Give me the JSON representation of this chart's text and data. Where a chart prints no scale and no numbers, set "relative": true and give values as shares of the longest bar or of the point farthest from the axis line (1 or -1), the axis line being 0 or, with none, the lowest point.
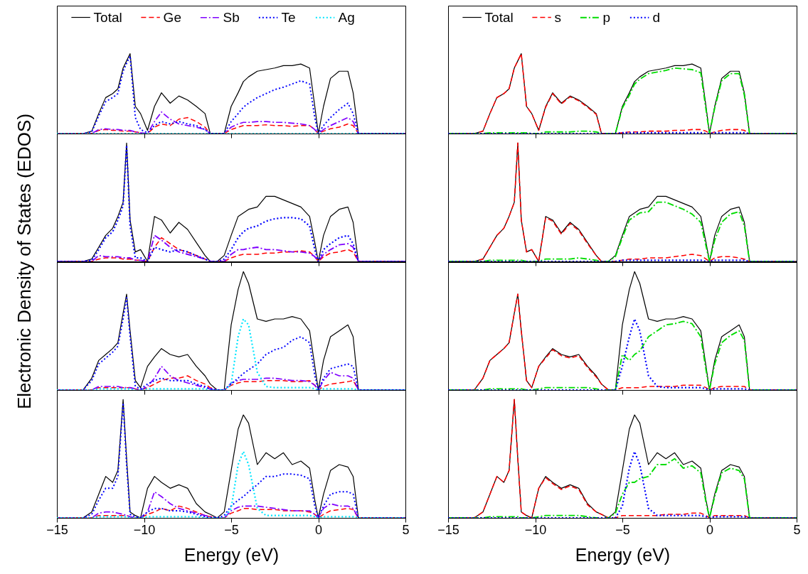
{
  "chart_data": [
    {
      "type": "line",
      "relative": true,
      "ylabel": "Electronic Density of States (EDOS)",
      "xlim": [
        -15,
        5
      ],
      "xticks": [
        -15,
        -10,
        -5,
        0,
        5
      ],
      "tick_labels": false,
      "legend": "top",
      "x": [
        -15,
        -13.5,
        -13,
        -12.6,
        -12.2,
        -11.8,
        -11.5,
        -11.2,
        -11,
        -10.8,
        -10.5,
        -10.2,
        -9.8,
        -9.4,
        -9,
        -8.5,
        -8,
        -7.5,
        -7,
        -6.5,
        -6.2,
        -5.8,
        -5.4,
        -5,
        -4.6,
        -4.3,
        -4,
        -3.5,
        -3,
        -2.5,
        -2,
        -1.5,
        -1,
        -0.5,
        -0.2,
        0,
        0.3,
        0.7,
        1.2,
        1.7,
        2,
        2.3,
        3,
        5
      ],
      "series": [
        {
          "name": "Total",
          "color": "#000000",
          "line_style": "solid",
          "values": [
            0,
            0,
            0.03,
            0.25,
            0.45,
            0.5,
            0.56,
            0.82,
            0.91,
            1,
            0.34,
            0.25,
            0.04,
            0.34,
            0.51,
            0.38,
            0.47,
            0.42,
            0.34,
            0.25,
            0,
            0,
            0,
            0.34,
            0.51,
            0.65,
            0.71,
            0.78,
            0.8,
            0.82,
            0.85,
            0.85,
            0.87,
            0.82,
            0.34,
            0,
            0.34,
            0.69,
            0.78,
            0.78,
            0.51,
            0,
            0,
            0
          ]
        },
        {
          "name": "Ge",
          "color": "#ff0000",
          "line_style": "dashed",
          "values": [
            0,
            0,
            0,
            0.04,
            0.05,
            0.04,
            0.04,
            0.03,
            0.03,
            0.03,
            0.02,
            0.01,
            0,
            0.08,
            0.12,
            0.1,
            0.18,
            0.2,
            0.15,
            0.08,
            0,
            0,
            0,
            0.05,
            0.08,
            0.1,
            0.1,
            0.1,
            0.11,
            0.1,
            0.1,
            0.09,
            0.1,
            0.1,
            0.05,
            0,
            0.03,
            0.06,
            0.08,
            0.12,
            0.1,
            0,
            0,
            0
          ]
        },
        {
          "name": "Sb",
          "color": "#8000ff",
          "line_style": "dashdot",
          "values": [
            0,
            0,
            0,
            0.05,
            0.06,
            0.05,
            0.05,
            0.04,
            0.04,
            0.04,
            0.02,
            0.01,
            0,
            0.15,
            0.27,
            0.18,
            0.12,
            0.1,
            0.08,
            0.05,
            0,
            0,
            0,
            0.08,
            0.12,
            0.14,
            0.14,
            0.15,
            0.15,
            0.14,
            0.14,
            0.13,
            0.12,
            0.1,
            0.05,
            0,
            0.05,
            0.1,
            0.15,
            0.2,
            0.15,
            0,
            0,
            0
          ]
        },
        {
          "name": "Te",
          "color": "#0000ff",
          "line_style": "dotted",
          "values": [
            0,
            0,
            0.02,
            0.22,
            0.4,
            0.45,
            0.5,
            0.78,
            0.88,
            0.97,
            0.2,
            0.05,
            0.01,
            0.1,
            0.15,
            0.12,
            0.15,
            0.12,
            0.1,
            0.05,
            0,
            0,
            0,
            0.15,
            0.25,
            0.33,
            0.38,
            0.45,
            0.5,
            0.55,
            0.58,
            0.62,
            0.66,
            0.62,
            0.2,
            0,
            0.1,
            0.2,
            0.3,
            0.38,
            0.25,
            0,
            0,
            0
          ]
        },
        {
          "name": "Ag",
          "color": "#00e5ff",
          "line_style": "dotted",
          "values": [
            0,
            0,
            0,
            0,
            0,
            0,
            0,
            0,
            0,
            0,
            0,
            0,
            0,
            0,
            0,
            0,
            0,
            0,
            0,
            0,
            0,
            0,
            0,
            0,
            0,
            0,
            0,
            0,
            0,
            0,
            0,
            0,
            0,
            0,
            0,
            0,
            0,
            0,
            0,
            0,
            0,
            0,
            0,
            0
          ]
        }
      ]
    },
    {
      "type": "line",
      "relative": true,
      "xlim": [
        -15,
        5
      ],
      "xticks": [
        -15,
        -10,
        -5,
        0,
        5
      ],
      "tick_labels": false,
      "legend": "top",
      "x": [
        -15,
        -13.5,
        -13,
        -12.6,
        -12.2,
        -11.8,
        -11.5,
        -11.2,
        -11,
        -10.8,
        -10.5,
        -10.2,
        -9.8,
        -9.4,
        -9,
        -8.5,
        -8,
        -7.5,
        -7,
        -6.5,
        -6.2,
        -5.8,
        -5.4,
        -5,
        -4.6,
        -4.3,
        -4,
        -3.5,
        -3,
        -2.5,
        -2,
        -1.5,
        -1,
        -0.5,
        -0.2,
        0,
        0.3,
        0.7,
        1.2,
        1.7,
        2,
        2.3,
        3,
        5
      ],
      "series": [
        {
          "name": "Total",
          "color": "#000000",
          "line_style": "solid",
          "values": [
            0,
            0,
            0.03,
            0.25,
            0.45,
            0.5,
            0.56,
            0.82,
            0.91,
            1,
            0.34,
            0.25,
            0.04,
            0.34,
            0.51,
            0.38,
            0.47,
            0.42,
            0.34,
            0.25,
            0,
            0,
            0,
            0.34,
            0.51,
            0.65,
            0.71,
            0.78,
            0.8,
            0.82,
            0.85,
            0.85,
            0.87,
            0.82,
            0.34,
            0,
            0.34,
            0.69,
            0.78,
            0.78,
            0.51,
            0,
            0,
            0
          ]
        },
        {
          "name": "s",
          "color": "#ff0000",
          "line_style": "dashed",
          "values": [
            0,
            0,
            0.03,
            0.25,
            0.45,
            0.5,
            0.56,
            0.82,
            0.91,
            1,
            0.34,
            0.25,
            0.04,
            0.33,
            0.5,
            0.37,
            0.46,
            0.41,
            0.33,
            0.24,
            0,
            0,
            0,
            0.01,
            0.02,
            0.02,
            0.02,
            0.03,
            0.03,
            0.03,
            0.04,
            0.04,
            0.05,
            0.05,
            0.03,
            0,
            0.02,
            0.04,
            0.05,
            0.05,
            0.04,
            0,
            0,
            0
          ]
        },
        {
          "name": "p",
          "color": "#00dd00",
          "line_style": "dashdot",
          "values": [
            0,
            0,
            0,
            0.01,
            0.01,
            0.01,
            0.01,
            0.01,
            0.01,
            0.01,
            0.01,
            0,
            0,
            0.02,
            0.02,
            0.02,
            0.02,
            0.03,
            0.03,
            0.02,
            0,
            0,
            0,
            0.32,
            0.48,
            0.62,
            0.68,
            0.75,
            0.77,
            0.79,
            0.82,
            0.81,
            0.8,
            0.76,
            0.3,
            0,
            0.32,
            0.66,
            0.75,
            0.75,
            0.48,
            0,
            0,
            0
          ]
        },
        {
          "name": "d",
          "color": "#0000ff",
          "line_style": "dotted",
          "values": [
            0,
            0,
            0,
            0,
            0,
            0,
            0,
            0,
            0,
            0,
            0,
            0,
            0,
            0,
            0,
            0,
            0,
            0,
            0,
            0,
            0,
            0,
            0,
            0.01,
            0.01,
            0.01,
            0.01,
            0.01,
            0.01,
            0.01,
            0.01,
            0.01,
            0.01,
            0.01,
            0,
            0,
            0.01,
            0.01,
            0.01,
            0.01,
            0.01,
            0,
            0,
            0
          ]
        }
      ]
    },
    {
      "type": "line",
      "relative": true,
      "xlim": [
        -15,
        5
      ],
      "xticks": [
        -15,
        -10,
        -5,
        0,
        5
      ],
      "tick_labels": false,
      "x": [
        -15,
        -13.5,
        -13,
        -12.6,
        -12.2,
        -11.8,
        -11.5,
        -11.2,
        -11,
        -10.8,
        -10.5,
        -10.2,
        -9.8,
        -9.4,
        -9,
        -8.5,
        -8,
        -7.5,
        -7,
        -6.5,
        -6.2,
        -5.8,
        -5.4,
        -5,
        -4.6,
        -4.3,
        -4,
        -3.5,
        -3,
        -2.5,
        -2,
        -1.5,
        -1,
        -0.5,
        -0.2,
        0,
        0.3,
        0.7,
        1.2,
        1.7,
        2,
        2.3,
        3,
        5
      ],
      "series": [
        {
          "color": "#000000",
          "line_style": "solid",
          "values": [
            0,
            0,
            0.02,
            0.12,
            0.22,
            0.28,
            0.38,
            0.5,
            1,
            0.35,
            0.08,
            0.1,
            0,
            0.38,
            0.35,
            0.24,
            0.33,
            0.27,
            0.16,
            0.05,
            0,
            0,
            0.05,
            0.22,
            0.38,
            0.41,
            0.44,
            0.46,
            0.55,
            0.55,
            0.52,
            0.49,
            0.46,
            0.38,
            0.16,
            0,
            0.22,
            0.38,
            0.44,
            0.46,
            0.33,
            0,
            0,
            0
          ]
        },
        {
          "color": "#ff0000",
          "line_style": "dashed",
          "values": [
            0,
            0,
            0,
            0.02,
            0.03,
            0.03,
            0.03,
            0.02,
            0.02,
            0.02,
            0.01,
            0.01,
            0,
            0.12,
            0.2,
            0.15,
            0.1,
            0.08,
            0.05,
            0.02,
            0,
            0,
            0,
            0.03,
            0.05,
            0.06,
            0.06,
            0.06,
            0.07,
            0.07,
            0.08,
            0.08,
            0.09,
            0.08,
            0.04,
            0,
            0.04,
            0.07,
            0.08,
            0.1,
            0.08,
            0,
            0,
            0
          ]
        },
        {
          "color": "#8000ff",
          "line_style": "dashdot",
          "values": [
            0,
            0,
            0,
            0.05,
            0.04,
            0.04,
            0.04,
            0.03,
            0.03,
            0.03,
            0.01,
            0.01,
            0,
            0.22,
            0.18,
            0.12,
            0.08,
            0.06,
            0.04,
            0.02,
            0,
            0,
            0,
            0.06,
            0.1,
            0.1,
            0.11,
            0.12,
            0.1,
            0.1,
            0.09,
            0.08,
            0.08,
            0.07,
            0.04,
            0,
            0.06,
            0.1,
            0.14,
            0.15,
            0.12,
            0,
            0,
            0
          ]
        },
        {
          "color": "#0000ff",
          "line_style": "dotted",
          "values": [
            0,
            0,
            0.01,
            0.1,
            0.2,
            0.25,
            0.35,
            0.47,
            0.98,
            0.3,
            0.03,
            0.03,
            0,
            0.12,
            0.1,
            0.08,
            0.1,
            0.08,
            0.05,
            0.02,
            0,
            0,
            0.02,
            0.1,
            0.2,
            0.25,
            0.28,
            0.3,
            0.34,
            0.36,
            0.37,
            0.37,
            0.36,
            0.3,
            0.1,
            0,
            0.1,
            0.15,
            0.2,
            0.22,
            0.15,
            0,
            0,
            0
          ]
        }
      ]
    },
    {
      "type": "line",
      "relative": true,
      "xlim": [
        -15,
        5
      ],
      "xticks": [
        -15,
        -10,
        -5,
        0,
        5
      ],
      "tick_labels": false,
      "x": [
        -15,
        -13.5,
        -13,
        -12.6,
        -12.2,
        -11.8,
        -11.5,
        -11.2,
        -11,
        -10.8,
        -10.5,
        -10.2,
        -9.8,
        -9.4,
        -9,
        -8.5,
        -8,
        -7.5,
        -7,
        -6.5,
        -6.2,
        -5.8,
        -5.4,
        -5,
        -4.6,
        -4.3,
        -4,
        -3.5,
        -3,
        -2.5,
        -2,
        -1.5,
        -1,
        -0.5,
        -0.2,
        0,
        0.3,
        0.7,
        1.2,
        1.7,
        2,
        2.3,
        3,
        5
      ],
      "series": [
        {
          "color": "#000000",
          "line_style": "solid",
          "values": [
            0,
            0,
            0.02,
            0.12,
            0.22,
            0.28,
            0.38,
            0.5,
            1,
            0.35,
            0.08,
            0.1,
            0,
            0.38,
            0.35,
            0.24,
            0.33,
            0.27,
            0.16,
            0.05,
            0,
            0,
            0.05,
            0.22,
            0.38,
            0.41,
            0.44,
            0.46,
            0.55,
            0.55,
            0.52,
            0.49,
            0.46,
            0.38,
            0.16,
            0,
            0.22,
            0.38,
            0.44,
            0.46,
            0.33,
            0,
            0,
            0
          ]
        },
        {
          "color": "#ff0000",
          "line_style": "dashed",
          "values": [
            0,
            0,
            0.02,
            0.12,
            0.22,
            0.28,
            0.38,
            0.5,
            1,
            0.35,
            0.08,
            0.1,
            0,
            0.37,
            0.34,
            0.23,
            0.32,
            0.26,
            0.15,
            0.05,
            0,
            0,
            0,
            0.01,
            0.02,
            0.02,
            0.02,
            0.03,
            0.03,
            0.03,
            0.04,
            0.05,
            0.06,
            0.05,
            0.02,
            0,
            0.03,
            0.04,
            0.04,
            0.03,
            0.02,
            0,
            0,
            0
          ]
        },
        {
          "color": "#00dd00",
          "line_style": "dashdot",
          "values": [
            0,
            0,
            0,
            0.01,
            0.01,
            0.01,
            0.01,
            0.01,
            0.01,
            0.01,
            0,
            0,
            0,
            0.02,
            0.02,
            0.02,
            0.02,
            0.03,
            0.02,
            0.01,
            0,
            0,
            0.04,
            0.2,
            0.35,
            0.38,
            0.41,
            0.42,
            0.5,
            0.5,
            0.47,
            0.44,
            0.4,
            0.33,
            0.13,
            0,
            0.18,
            0.33,
            0.4,
            0.42,
            0.3,
            0,
            0,
            0
          ]
        },
        {
          "color": "#0000ff",
          "line_style": "dotted",
          "values": [
            0,
            0,
            0,
            0,
            0,
            0,
            0,
            0,
            0,
            0,
            0,
            0,
            0,
            0,
            0,
            0,
            0,
            0,
            0,
            0,
            0,
            0,
            0,
            0.01,
            0.01,
            0.01,
            0.01,
            0.01,
            0.01,
            0.01,
            0.01,
            0.01,
            0.01,
            0.01,
            0,
            0,
            0.01,
            0.01,
            0.01,
            0.01,
            0.01,
            0,
            0,
            0
          ]
        }
      ]
    },
    {
      "type": "line",
      "relative": true,
      "xlim": [
        -15,
        5
      ],
      "xticks": [
        -15,
        -10,
        -5,
        0,
        5
      ],
      "tick_labels": false,
      "x": [
        -15,
        -13.5,
        -13,
        -12.6,
        -12.2,
        -11.8,
        -11.5,
        -11.2,
        -11,
        -10.8,
        -10.5,
        -10.2,
        -9.8,
        -9.4,
        -9,
        -8.5,
        -8,
        -7.5,
        -7,
        -6.5,
        -6.2,
        -5.8,
        -5.4,
        -5,
        -4.6,
        -4.3,
        -4,
        -3.5,
        -3,
        -2.5,
        -2,
        -1.5,
        -1,
        -0.5,
        -0.2,
        0,
        0.3,
        0.7,
        1.2,
        1.7,
        2,
        2.3,
        3,
        5
      ],
      "series": [
        {
          "color": "#000000",
          "line_style": "solid",
          "values": [
            0,
            0,
            0.1,
            0.25,
            0.3,
            0.35,
            0.4,
            0.65,
            0.81,
            0.5,
            0.08,
            0.02,
            0.2,
            0.28,
            0.35,
            0.3,
            0.28,
            0.3,
            0.2,
            0.12,
            0.05,
            0,
            0,
            0.55,
            0.85,
            1,
            0.9,
            0.6,
            0.58,
            0.6,
            0.6,
            0.62,
            0.6,
            0.5,
            0.2,
            0,
            0.25,
            0.45,
            0.5,
            0.55,
            0.45,
            0,
            0,
            0
          ]
        },
        {
          "color": "#ff0000",
          "line_style": "dashed",
          "values": [
            0,
            0,
            0,
            0.02,
            0.02,
            0.02,
            0.02,
            0.02,
            0.02,
            0.02,
            0.01,
            0,
            0.02,
            0.05,
            0.08,
            0.1,
            0.1,
            0.12,
            0.08,
            0.05,
            0.02,
            0,
            0,
            0.04,
            0.06,
            0.07,
            0.07,
            0.07,
            0.08,
            0.08,
            0.08,
            0.07,
            0.07,
            0.08,
            0.04,
            0,
            0.03,
            0.05,
            0.06,
            0.07,
            0.08,
            0,
            0,
            0
          ]
        },
        {
          "color": "#8000ff",
          "line_style": "dashdot",
          "values": [
            0,
            0,
            0,
            0.03,
            0.03,
            0.03,
            0.03,
            0.02,
            0.02,
            0.02,
            0.01,
            0,
            0.03,
            0.1,
            0.2,
            0.12,
            0.08,
            0.06,
            0.04,
            0.02,
            0.01,
            0,
            0,
            0.06,
            0.08,
            0.09,
            0.09,
            0.09,
            0.1,
            0.1,
            0.09,
            0.08,
            0.08,
            0.07,
            0.04,
            0,
            0.08,
            0.15,
            0.12,
            0.12,
            0.1,
            0,
            0,
            0
          ]
        },
        {
          "color": "#0000ff",
          "line_style": "dotted",
          "values": [
            0,
            0,
            0.08,
            0.22,
            0.27,
            0.32,
            0.37,
            0.6,
            0.78,
            0.45,
            0.03,
            0.01,
            0.05,
            0.08,
            0.1,
            0.08,
            0.08,
            0.08,
            0.05,
            0.03,
            0.01,
            0,
            0,
            0.05,
            0.1,
            0.14,
            0.17,
            0.22,
            0.3,
            0.34,
            0.36,
            0.42,
            0.45,
            0.4,
            0.12,
            0,
            0.1,
            0.18,
            0.2,
            0.22,
            0.2,
            0,
            0,
            0
          ]
        },
        {
          "color": "#00e5ff",
          "line_style": "dotted",
          "values": [
            0,
            0,
            0,
            0.01,
            0.01,
            0.01,
            0.01,
            0.01,
            0.01,
            0.01,
            0,
            0,
            0.01,
            0.01,
            0.01,
            0.01,
            0.01,
            0.01,
            0.01,
            0.01,
            0,
            0,
            0,
            0.05,
            0.45,
            0.6,
            0.55,
            0.15,
            0.03,
            0.02,
            0.02,
            0.02,
            0.02,
            0.02,
            0.01,
            0,
            0.01,
            0.01,
            0.01,
            0.01,
            0.01,
            0,
            0,
            0
          ]
        }
      ]
    },
    {
      "type": "line",
      "relative": true,
      "xlim": [
        -15,
        5
      ],
      "xticks": [
        -15,
        -10,
        -5,
        0,
        5
      ],
      "tick_labels": false,
      "x": [
        -15,
        -13.5,
        -13,
        -12.6,
        -12.2,
        -11.8,
        -11.5,
        -11.2,
        -11,
        -10.8,
        -10.5,
        -10.2,
        -9.8,
        -9.4,
        -9,
        -8.5,
        -8,
        -7.5,
        -7,
        -6.5,
        -6.2,
        -5.8,
        -5.4,
        -5,
        -4.6,
        -4.3,
        -4,
        -3.5,
        -3,
        -2.5,
        -2,
        -1.5,
        -1,
        -0.5,
        -0.2,
        0,
        0.3,
        0.7,
        1.2,
        1.7,
        2,
        2.3,
        3,
        5
      ],
      "series": [
        {
          "color": "#000000",
          "line_style": "solid",
          "values": [
            0,
            0,
            0.1,
            0.25,
            0.3,
            0.35,
            0.4,
            0.65,
            0.81,
            0.5,
            0.08,
            0.02,
            0.2,
            0.28,
            0.35,
            0.3,
            0.28,
            0.3,
            0.2,
            0.12,
            0.05,
            0,
            0,
            0.55,
            0.85,
            1,
            0.9,
            0.6,
            0.58,
            0.6,
            0.6,
            0.62,
            0.6,
            0.5,
            0.2,
            0,
            0.25,
            0.45,
            0.5,
            0.55,
            0.45,
            0,
            0,
            0
          ]
        },
        {
          "color": "#ff0000",
          "line_style": "dashed",
          "values": [
            0,
            0,
            0.1,
            0.25,
            0.3,
            0.35,
            0.4,
            0.65,
            0.81,
            0.5,
            0.08,
            0.02,
            0.2,
            0.27,
            0.34,
            0.29,
            0.27,
            0.29,
            0.19,
            0.11,
            0.05,
            0,
            0,
            0.02,
            0.02,
            0.02,
            0.02,
            0.03,
            0.03,
            0.03,
            0.03,
            0.04,
            0.04,
            0.04,
            0.02,
            0,
            0.02,
            0.03,
            0.03,
            0.03,
            0.03,
            0,
            0,
            0
          ]
        },
        {
          "color": "#00dd00",
          "line_style": "dashdot",
          "values": [
            0,
            0,
            0,
            0.01,
            0.01,
            0.01,
            0.01,
            0.01,
            0.01,
            0.01,
            0,
            0,
            0.01,
            0.02,
            0.02,
            0.02,
            0.02,
            0.02,
            0.02,
            0.01,
            0,
            0,
            0,
            0.3,
            0.25,
            0.3,
            0.33,
            0.45,
            0.5,
            0.55,
            0.56,
            0.58,
            0.56,
            0.45,
            0.17,
            0,
            0.22,
            0.4,
            0.46,
            0.5,
            0.42,
            0,
            0,
            0
          ]
        },
        {
          "color": "#0000ff",
          "line_style": "dotted",
          "values": [
            0,
            0,
            0,
            0,
            0,
            0,
            0,
            0,
            0,
            0,
            0,
            0,
            0,
            0,
            0,
            0,
            0,
            0,
            0,
            0,
            0,
            0,
            0,
            0.2,
            0.45,
            0.6,
            0.5,
            0.12,
            0.03,
            0.02,
            0.02,
            0.02,
            0.02,
            0.02,
            0.01,
            0,
            0.01,
            0.01,
            0.01,
            0.01,
            0.01,
            0,
            0,
            0
          ]
        }
      ]
    },
    {
      "type": "line",
      "relative": true,
      "xlabel": "Energy (eV)",
      "xlim": [
        -15,
        5
      ],
      "xticks": [
        -15,
        -10,
        -5,
        0,
        5
      ],
      "tick_labels": "x",
      "x": [
        -15,
        -13.5,
        -13,
        -12.6,
        -12.2,
        -11.8,
        -11.5,
        -11.2,
        -11,
        -10.8,
        -10.5,
        -10.2,
        -9.8,
        -9.4,
        -9,
        -8.5,
        -8,
        -7.5,
        -7,
        -6.5,
        -6.2,
        -5.8,
        -5.4,
        -5,
        -4.6,
        -4.3,
        -4,
        -3.5,
        -3,
        -2.5,
        -2,
        -1.5,
        -1,
        -0.5,
        -0.2,
        0,
        0.3,
        0.7,
        1.2,
        1.7,
        2,
        2.3,
        3,
        5
      ],
      "series": [
        {
          "color": "#000000",
          "line_style": "solid",
          "values": [
            0,
            0,
            0.05,
            0.2,
            0.35,
            0.3,
            0.4,
            1,
            0.5,
            0.05,
            0.02,
            0,
            0.25,
            0.35,
            0.3,
            0.25,
            0.28,
            0.25,
            0.12,
            0.05,
            0.03,
            0,
            0.05,
            0.4,
            0.75,
            0.87,
            0.8,
            0.45,
            0.55,
            0.5,
            0.55,
            0.45,
            0.48,
            0.42,
            0.15,
            0,
            0.2,
            0.4,
            0.45,
            0.43,
            0.35,
            0,
            0,
            0
          ]
        },
        {
          "color": "#ff0000",
          "line_style": "dashed",
          "values": [
            0,
            0,
            0,
            0.02,
            0.02,
            0.02,
            0.02,
            0.02,
            0.02,
            0.01,
            0,
            0,
            0.03,
            0.05,
            0.08,
            0.06,
            0.1,
            0.08,
            0.05,
            0.02,
            0.01,
            0,
            0,
            0.04,
            0.06,
            0.08,
            0.08,
            0.07,
            0.07,
            0.07,
            0.06,
            0.06,
            0.06,
            0.05,
            0.03,
            0,
            0.03,
            0.06,
            0.07,
            0.08,
            0.07,
            0,
            0,
            0
          ]
        },
        {
          "color": "#8000ff",
          "line_style": "dashdot",
          "values": [
            0,
            0,
            0,
            0.04,
            0.05,
            0.05,
            0.04,
            0.03,
            0.02,
            0.01,
            0,
            0,
            0.05,
            0.22,
            0.18,
            0.12,
            0.08,
            0.06,
            0.04,
            0.02,
            0.01,
            0,
            0,
            0.06,
            0.09,
            0.1,
            0.1,
            0.1,
            0.09,
            0.08,
            0.07,
            0.06,
            0.06,
            0.06,
            0.03,
            0,
            0.08,
            0.12,
            0.1,
            0.1,
            0.08,
            0,
            0,
            0
          ]
        },
        {
          "color": "#0000ff",
          "line_style": "dotted",
          "values": [
            0,
            0,
            0.03,
            0.15,
            0.25,
            0.25,
            0.35,
            0.97,
            0.45,
            0.03,
            0.01,
            0,
            0.05,
            0.08,
            0.08,
            0.06,
            0.06,
            0.05,
            0.03,
            0.01,
            0,
            0,
            0.02,
            0.1,
            0.15,
            0.18,
            0.22,
            0.28,
            0.35,
            0.35,
            0.37,
            0.37,
            0.36,
            0.33,
            0.1,
            0,
            0.1,
            0.2,
            0.22,
            0.22,
            0.2,
            0,
            0,
            0
          ]
        },
        {
          "color": "#00e5ff",
          "line_style": "dotted",
          "values": [
            0,
            0,
            0,
            0.01,
            0.01,
            0.01,
            0.01,
            0.01,
            0.01,
            0,
            0,
            0,
            0.01,
            0.01,
            0.01,
            0.01,
            0.01,
            0.01,
            0.01,
            0,
            0,
            0,
            0,
            0.08,
            0.45,
            0.56,
            0.45,
            0.08,
            0.02,
            0.02,
            0.02,
            0.02,
            0.02,
            0.02,
            0.01,
            0,
            0.01,
            0.01,
            0.01,
            0.01,
            0.01,
            0,
            0,
            0
          ]
        }
      ]
    },
    {
      "type": "line",
      "relative": true,
      "xlabel": "Energy (eV)",
      "xlim": [
        -15,
        5
      ],
      "xticks": [
        -15,
        -10,
        -5,
        0,
        5
      ],
      "tick_labels": "x",
      "x": [
        -15,
        -13.5,
        -13,
        -12.6,
        -12.2,
        -11.8,
        -11.5,
        -11.2,
        -11,
        -10.8,
        -10.5,
        -10.2,
        -9.8,
        -9.4,
        -9,
        -8.5,
        -8,
        -7.5,
        -7,
        -6.5,
        -6.2,
        -5.8,
        -5.4,
        -5,
        -4.6,
        -4.3,
        -4,
        -3.5,
        -3,
        -2.5,
        -2,
        -1.5,
        -1,
        -0.5,
        -0.2,
        0,
        0.3,
        0.7,
        1.2,
        1.7,
        2,
        2.3,
        3,
        5
      ],
      "series": [
        {
          "color": "#000000",
          "line_style": "solid",
          "values": [
            0,
            0,
            0.05,
            0.2,
            0.35,
            0.3,
            0.4,
            1,
            0.5,
            0.05,
            0.02,
            0,
            0.25,
            0.35,
            0.3,
            0.25,
            0.28,
            0.25,
            0.12,
            0.05,
            0.03,
            0,
            0.05,
            0.4,
            0.75,
            0.87,
            0.8,
            0.45,
            0.55,
            0.5,
            0.55,
            0.45,
            0.48,
            0.42,
            0.15,
            0,
            0.2,
            0.4,
            0.45,
            0.43,
            0.35,
            0,
            0,
            0
          ]
        },
        {
          "color": "#ff0000",
          "line_style": "dashed",
          "values": [
            0,
            0,
            0.05,
            0.2,
            0.35,
            0.3,
            0.4,
            1,
            0.5,
            0.05,
            0.02,
            0,
            0.25,
            0.34,
            0.29,
            0.24,
            0.27,
            0.24,
            0.11,
            0.05,
            0.03,
            0,
            0,
            0.02,
            0.02,
            0.02,
            0.02,
            0.02,
            0.02,
            0.03,
            0.03,
            0.03,
            0.04,
            0.04,
            0.02,
            0,
            0.02,
            0.02,
            0.02,
            0.02,
            0.02,
            0,
            0,
            0
          ]
        },
        {
          "color": "#00dd00",
          "line_style": "dashdot",
          "values": [
            0,
            0,
            0,
            0.01,
            0.01,
            0.01,
            0.01,
            0.01,
            0.01,
            0,
            0,
            0,
            0.01,
            0.02,
            0.02,
            0.02,
            0.02,
            0.02,
            0.01,
            0,
            0,
            0,
            0.04,
            0.2,
            0.3,
            0.3,
            0.33,
            0.35,
            0.45,
            0.45,
            0.5,
            0.42,
            0.44,
            0.38,
            0.13,
            0,
            0.18,
            0.38,
            0.42,
            0.4,
            0.33,
            0,
            0,
            0
          ]
        },
        {
          "color": "#0000ff",
          "line_style": "dotted",
          "values": [
            0,
            0,
            0,
            0,
            0,
            0,
            0,
            0,
            0,
            0,
            0,
            0,
            0,
            0,
            0,
            0,
            0,
            0,
            0,
            0,
            0,
            0,
            0,
            0.1,
            0.42,
            0.56,
            0.45,
            0.08,
            0.02,
            0.02,
            0.02,
            0.02,
            0.02,
            0.02,
            0.01,
            0,
            0.01,
            0.01,
            0.01,
            0.01,
            0.01,
            0,
            0,
            0
          ]
        }
      ]
    }
  ]
}
